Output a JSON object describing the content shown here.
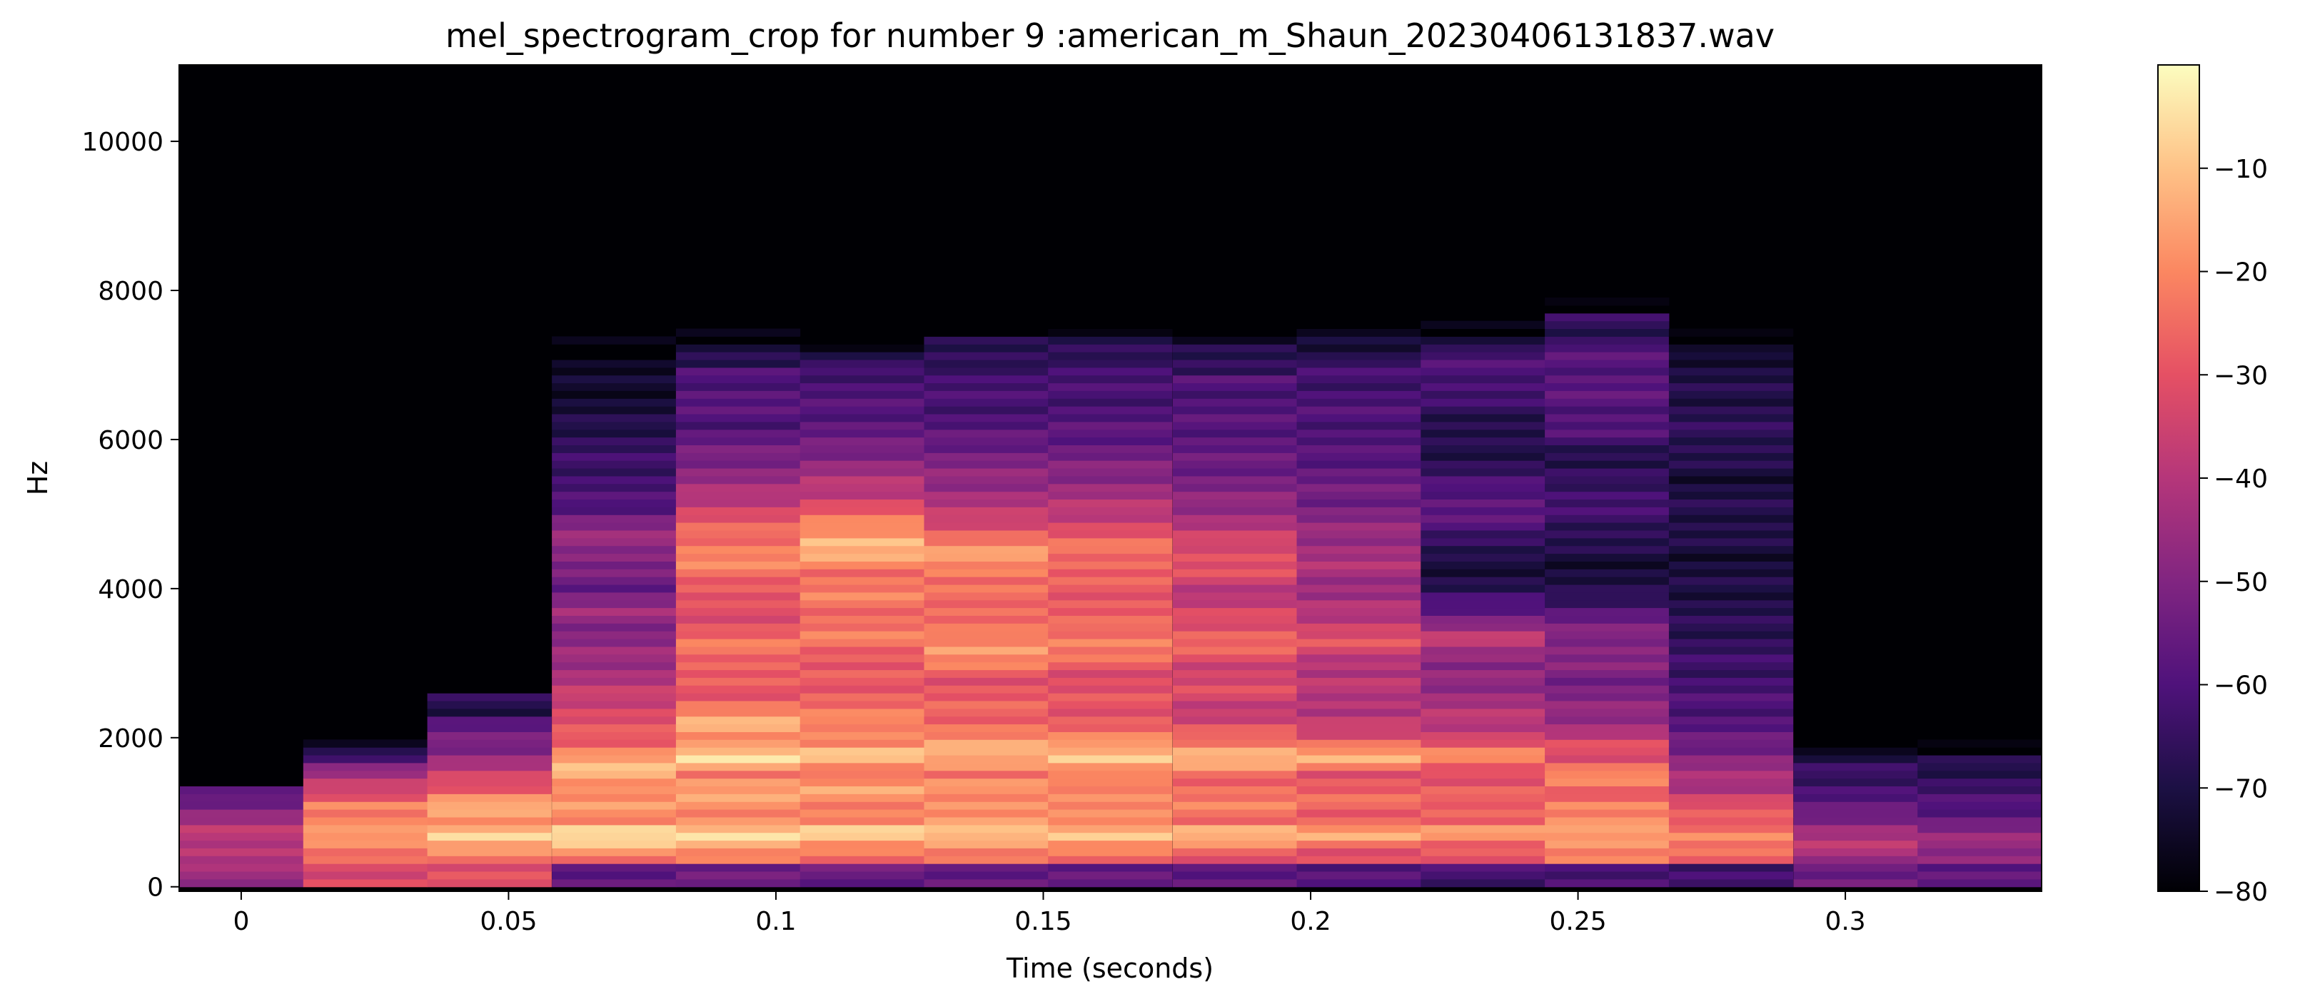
{
  "chart_data": {
    "type": "heatmap",
    "title": "mel_spectrogram_crop for number 9 :american_m_Shaun_20230406131837.wav",
    "xlabel": "Time (seconds)",
    "ylabel": "Hz",
    "xlim": [
      -0.0116,
      0.3367
    ],
    "ylim": [
      -60,
      11025
    ],
    "x_ticks": [
      0,
      0.05,
      0.1,
      0.15,
      0.2,
      0.25,
      0.3
    ],
    "x_tick_labels": [
      "0",
      "0.05",
      "0.1",
      "0.15",
      "0.2",
      "0.25",
      "0.3"
    ],
    "y_ticks": [
      0,
      2000,
      4000,
      6000,
      8000,
      10000
    ],
    "y_tick_labels": [
      "0",
      "2000",
      "4000",
      "6000",
      "8000",
      "10000"
    ],
    "colormap": "magma",
    "colorbar": {
      "range": [
        -80,
        0
      ],
      "ticks": [
        -10,
        -20,
        -30,
        -40,
        -50,
        -60,
        -70,
        -80
      ],
      "tick_labels": [
        "−10",
        "−20",
        "−30",
        "−40",
        "−50",
        "−60",
        "−70",
        "−80"
      ]
    },
    "time_frames": [
      0.0,
      0.0232,
      0.0464,
      0.0697,
      0.0929,
      0.1161,
      0.1393,
      0.1625,
      0.1858,
      0.209,
      0.2322,
      0.2554,
      0.2786,
      0.3019,
      0.3251
    ],
    "frequency_bin_hz": 104,
    "frames_db": [
      {
        "t": 0.0,
        "upper_hz": 1350,
        "low_db": -45,
        "bands": [
          [
            300,
            -42
          ],
          [
            550,
            -38
          ],
          [
            780,
            -40
          ],
          [
            1000,
            -48
          ],
          [
            1200,
            -55
          ]
        ]
      },
      {
        "t": 0.0232,
        "upper_hz": 1850,
        "low_db": -32,
        "bands": [
          [
            300,
            -30
          ],
          [
            520,
            -22
          ],
          [
            720,
            -12
          ],
          [
            900,
            -25
          ],
          [
            1100,
            -20
          ],
          [
            1300,
            -35
          ],
          [
            1550,
            -45
          ],
          [
            1750,
            -62
          ]
        ]
      },
      {
        "t": 0.0464,
        "upper_hz": 2550,
        "low_db": -30,
        "bands": [
          [
            300,
            -28
          ],
          [
            520,
            -18
          ],
          [
            720,
            -4
          ],
          [
            900,
            -22
          ],
          [
            1100,
            -12
          ],
          [
            1350,
            -30
          ],
          [
            1600,
            -40
          ],
          [
            1850,
            -50
          ],
          [
            2100,
            -55
          ],
          [
            2300,
            -62
          ]
        ]
      },
      {
        "t": 0.0697,
        "upper_hz": 7200,
        "low_db": -58,
        "bands": [
          [
            300,
            -25
          ],
          [
            520,
            -15
          ],
          [
            720,
            -2
          ],
          [
            900,
            -20
          ],
          [
            1100,
            -18
          ],
          [
            1300,
            -20
          ],
          [
            1500,
            -12
          ],
          [
            1700,
            -14
          ],
          [
            1900,
            -25
          ],
          [
            2100,
            -30
          ],
          [
            2300,
            -32
          ],
          [
            2500,
            -35
          ],
          [
            2800,
            -42
          ],
          [
            3100,
            -45
          ],
          [
            3400,
            -50
          ],
          [
            3700,
            -45
          ],
          [
            4000,
            -55
          ],
          [
            4300,
            -52
          ],
          [
            4600,
            -45
          ],
          [
            4900,
            -50
          ],
          [
            5100,
            -60
          ],
          [
            6000,
            -66
          ],
          [
            6400,
            -72
          ],
          [
            6800,
            -74
          ],
          [
            7100,
            -76
          ]
        ]
      },
      {
        "t": 0.0929,
        "upper_hz": 7300,
        "low_db": -55,
        "bands": [
          [
            300,
            -25
          ],
          [
            520,
            -15
          ],
          [
            720,
            -6
          ],
          [
            900,
            -20
          ],
          [
            1100,
            -18
          ],
          [
            1350,
            -15
          ],
          [
            1500,
            -22
          ],
          [
            1750,
            -5
          ],
          [
            1950,
            -20
          ],
          [
            2150,
            -12
          ],
          [
            2400,
            -22
          ],
          [
            2600,
            -30
          ],
          [
            2900,
            -28
          ],
          [
            3200,
            -22
          ],
          [
            3500,
            -30
          ],
          [
            3800,
            -32
          ],
          [
            4100,
            -26
          ],
          [
            4400,
            -20
          ],
          [
            4700,
            -24
          ],
          [
            5000,
            -32
          ],
          [
            5400,
            -45
          ],
          [
            5800,
            -52
          ],
          [
            6200,
            -60
          ],
          [
            6600,
            -58
          ],
          [
            7000,
            -62
          ]
        ]
      },
      {
        "t": 0.1161,
        "upper_hz": 7200,
        "low_db": -55,
        "bands": [
          [
            300,
            -28
          ],
          [
            520,
            -20
          ],
          [
            720,
            -5
          ],
          [
            900,
            -22
          ],
          [
            1100,
            -20
          ],
          [
            1350,
            -15
          ],
          [
            1500,
            -25
          ],
          [
            1750,
            -8
          ],
          [
            1950,
            -22
          ],
          [
            2150,
            -18
          ],
          [
            2400,
            -25
          ],
          [
            2700,
            -28
          ],
          [
            3000,
            -30
          ],
          [
            3300,
            -22
          ],
          [
            3600,
            -25
          ],
          [
            3900,
            -22
          ],
          [
            4200,
            -24
          ],
          [
            4600,
            -10
          ],
          [
            4900,
            -22
          ],
          [
            5200,
            -35
          ],
          [
            5600,
            -45
          ],
          [
            6000,
            -55
          ],
          [
            6500,
            -60
          ],
          [
            7000,
            -62
          ]
        ]
      },
      {
        "t": 0.1393,
        "upper_hz": 7400,
        "low_db": -55,
        "bands": [
          [
            300,
            -28
          ],
          [
            520,
            -20
          ],
          [
            720,
            -5
          ],
          [
            900,
            -20
          ],
          [
            1100,
            -18
          ],
          [
            1350,
            -18
          ],
          [
            1500,
            -25
          ],
          [
            1750,
            -10
          ],
          [
            2000,
            -20
          ],
          [
            2200,
            -25
          ],
          [
            2500,
            -28
          ],
          [
            2800,
            -30
          ],
          [
            3200,
            -15
          ],
          [
            3500,
            -26
          ],
          [
            3800,
            -24
          ],
          [
            4100,
            -26
          ],
          [
            4400,
            -15
          ],
          [
            4700,
            -25
          ],
          [
            5000,
            -38
          ],
          [
            5400,
            -46
          ],
          [
            5800,
            -52
          ],
          [
            6200,
            -60
          ],
          [
            6600,
            -62
          ],
          [
            7000,
            -62
          ]
        ]
      },
      {
        "t": 0.1625,
        "upper_hz": 7400,
        "low_db": -55,
        "bands": [
          [
            300,
            -30
          ],
          [
            520,
            -22
          ],
          [
            720,
            -6
          ],
          [
            900,
            -22
          ],
          [
            1100,
            -20
          ],
          [
            1350,
            -18
          ],
          [
            1500,
            -25
          ],
          [
            1750,
            -6
          ],
          [
            2000,
            -22
          ],
          [
            2200,
            -28
          ],
          [
            2500,
            -30
          ],
          [
            2800,
            -32
          ],
          [
            3300,
            -20
          ],
          [
            3600,
            -28
          ],
          [
            3900,
            -28
          ],
          [
            4200,
            -28
          ],
          [
            4500,
            -22
          ],
          [
            4800,
            -32
          ],
          [
            5100,
            -40
          ],
          [
            5500,
            -48
          ],
          [
            5900,
            -55
          ],
          [
            6300,
            -60
          ],
          [
            6700,
            -62
          ],
          [
            7100,
            -62
          ]
        ]
      },
      {
        "t": 0.1858,
        "upper_hz": 7300,
        "low_db": -58,
        "bands": [
          [
            300,
            -30
          ],
          [
            520,
            -25
          ],
          [
            720,
            -8
          ],
          [
            900,
            -25
          ],
          [
            1100,
            -22
          ],
          [
            1350,
            -25
          ],
          [
            1500,
            -25
          ],
          [
            1750,
            -10
          ],
          [
            2000,
            -25
          ],
          [
            2300,
            -38
          ],
          [
            2600,
            -32
          ],
          [
            2900,
            -35
          ],
          [
            3300,
            -25
          ],
          [
            3600,
            -32
          ],
          [
            3900,
            -40
          ],
          [
            4200,
            -32
          ],
          [
            4500,
            -30
          ],
          [
            4900,
            -42
          ],
          [
            5300,
            -50
          ],
          [
            5700,
            -55
          ],
          [
            6100,
            -58
          ],
          [
            6500,
            -60
          ],
          [
            6900,
            -60
          ]
        ]
      },
      {
        "t": 0.209,
        "upper_hz": 7400,
        "low_db": -60,
        "bands": [
          [
            300,
            -32
          ],
          [
            520,
            -28
          ],
          [
            720,
            -12
          ],
          [
            900,
            -28
          ],
          [
            1100,
            -25
          ],
          [
            1350,
            -28
          ],
          [
            1500,
            -30
          ],
          [
            1750,
            -12
          ],
          [
            2000,
            -30
          ],
          [
            2300,
            -42
          ],
          [
            2600,
            -38
          ],
          [
            2900,
            -42
          ],
          [
            3300,
            -30
          ],
          [
            3600,
            -38
          ],
          [
            3900,
            -45
          ],
          [
            4300,
            -42
          ],
          [
            4700,
            -45
          ],
          [
            5100,
            -52
          ],
          [
            5500,
            -55
          ],
          [
            5900,
            -60
          ],
          [
            6300,
            -60
          ],
          [
            6700,
            -62
          ],
          [
            7100,
            -64
          ]
        ]
      },
      {
        "t": 0.2322,
        "upper_hz": 7400,
        "low_db": -62,
        "bands": [
          [
            300,
            -30
          ],
          [
            520,
            -28
          ],
          [
            720,
            -15
          ],
          [
            900,
            -28
          ],
          [
            1100,
            -25
          ],
          [
            1350,
            -30
          ],
          [
            1500,
            -32
          ],
          [
            1750,
            -18
          ],
          [
            2000,
            -35
          ],
          [
            2300,
            -40
          ],
          [
            2600,
            -45
          ],
          [
            3000,
            -50
          ],
          [
            3300,
            -36
          ],
          [
            3600,
            -52
          ],
          [
            4000,
            -68
          ],
          [
            4400,
            -72
          ],
          [
            4800,
            -60
          ],
          [
            5200,
            -56
          ],
          [
            5600,
            -66
          ],
          [
            6000,
            -70
          ],
          [
            6400,
            -66
          ],
          [
            6800,
            -60
          ],
          [
            7200,
            -62
          ]
        ]
      },
      {
        "t": 0.2554,
        "upper_hz": 7700,
        "low_db": -60,
        "bands": [
          [
            300,
            -25
          ],
          [
            520,
            -20
          ],
          [
            720,
            -12
          ],
          [
            900,
            -22
          ],
          [
            1100,
            -20
          ],
          [
            1300,
            -28
          ],
          [
            1500,
            -18
          ],
          [
            1700,
            -30
          ],
          [
            1900,
            -32
          ],
          [
            2100,
            -42
          ],
          [
            2400,
            -48
          ],
          [
            2700,
            -52
          ],
          [
            3000,
            -50
          ],
          [
            3300,
            -48
          ],
          [
            3600,
            -55
          ],
          [
            4000,
            -70
          ],
          [
            4400,
            -72
          ],
          [
            4900,
            -64
          ],
          [
            5300,
            -62
          ],
          [
            5700,
            -70
          ],
          [
            6100,
            -60
          ],
          [
            6500,
            -58
          ],
          [
            6900,
            -58
          ],
          [
            7300,
            -60
          ]
        ]
      },
      {
        "t": 0.2786,
        "upper_hz": 7300,
        "low_db": -62,
        "bands": [
          [
            300,
            -30
          ],
          [
            520,
            -25
          ],
          [
            720,
            -18
          ],
          [
            900,
            -30
          ],
          [
            1100,
            -30
          ],
          [
            1350,
            -42
          ],
          [
            1600,
            -45
          ],
          [
            1850,
            -52
          ],
          [
            2100,
            -58
          ],
          [
            2400,
            -60
          ],
          [
            2700,
            -62
          ],
          [
            3000,
            -64
          ],
          [
            3300,
            -66
          ],
          [
            3600,
            -68
          ],
          [
            4400,
            -72
          ],
          [
            5000,
            -68
          ],
          [
            5500,
            -72
          ],
          [
            6000,
            -66
          ],
          [
            6400,
            -68
          ],
          [
            6800,
            -70
          ],
          [
            7200,
            -72
          ]
        ]
      },
      {
        "t": 0.3019,
        "upper_hz": 1850,
        "low_db": -55,
        "bands": [
          [
            300,
            -45
          ],
          [
            520,
            -40
          ],
          [
            720,
            -42
          ],
          [
            900,
            -50
          ],
          [
            1100,
            -58
          ],
          [
            1350,
            -62
          ],
          [
            1600,
            -66
          ],
          [
            1800,
            -72
          ]
        ]
      },
      {
        "t": 0.3251,
        "upper_hz": 1850,
        "low_db": -58,
        "bands": [
          [
            300,
            -48
          ],
          [
            520,
            -45
          ],
          [
            720,
            -48
          ],
          [
            900,
            -55
          ],
          [
            1100,
            -60
          ],
          [
            1350,
            -64
          ],
          [
            1600,
            -68
          ],
          [
            1800,
            -72
          ]
        ]
      }
    ],
    "floor_db": -80
  }
}
